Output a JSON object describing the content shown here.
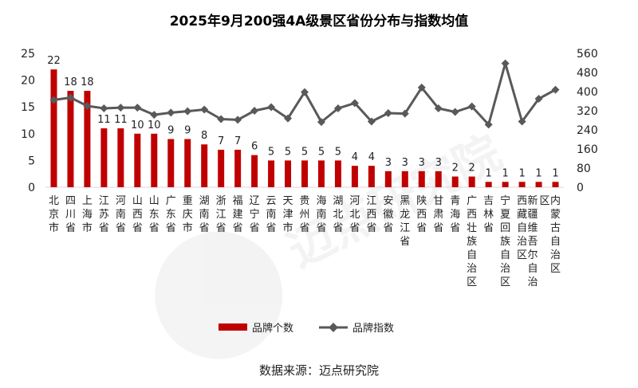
{
  "chart_data": {
    "type": "bar",
    "title": "2025年9月200强4A级景区省份分布与指数均值",
    "categories": [
      "北京市",
      "四川省",
      "上海市",
      "江苏省",
      "河南省",
      "山西省",
      "山东省",
      "广东省",
      "重庆市",
      "湖南省",
      "浙江省",
      "福建省",
      "辽宁省",
      "云南省",
      "天津市",
      "贵州省",
      "海南省",
      "湖北省",
      "河北省",
      "江西省",
      "安徽省",
      "黑龙江省",
      "陕西省",
      "甘肃省",
      "青海省",
      "广西壮族自治区",
      "吉林省",
      "宁夏回族自治区",
      "西藏自治区",
      "新疆维吾尔自治区",
      "内蒙古自治区"
    ],
    "series": [
      {
        "name": "品牌个数",
        "type": "bar",
        "axis": "left",
        "color": "#C00000",
        "values": [
          22,
          18,
          18,
          11,
          11,
          10,
          10,
          9,
          9,
          8,
          7,
          7,
          6,
          5,
          5,
          5,
          5,
          5,
          4,
          4,
          3,
          3,
          3,
          3,
          2,
          2,
          1,
          1,
          1,
          1,
          1
        ]
      },
      {
        "name": "品牌指数",
        "type": "line",
        "axis": "right",
        "color": "#595959",
        "values": [
          365,
          375,
          340,
          330,
          333,
          333,
          303,
          312,
          318,
          325,
          285,
          282,
          320,
          335,
          288,
          398,
          273,
          330,
          352,
          275,
          310,
          308,
          417,
          330,
          315,
          338,
          262,
          518,
          275,
          370,
          408
        ]
      }
    ],
    "y_left": {
      "min": 0,
      "max": 25,
      "ticks": [
        0,
        5,
        10,
        15,
        20,
        25
      ]
    },
    "y_right": {
      "min": 0,
      "max": 560,
      "ticks": [
        0,
        80,
        160,
        240,
        320,
        400,
        480,
        560
      ]
    },
    "legend": {
      "position": "bottom"
    },
    "grid": false
  },
  "source": "数据来源：迈点研究院",
  "watermark": "迈点研究院"
}
